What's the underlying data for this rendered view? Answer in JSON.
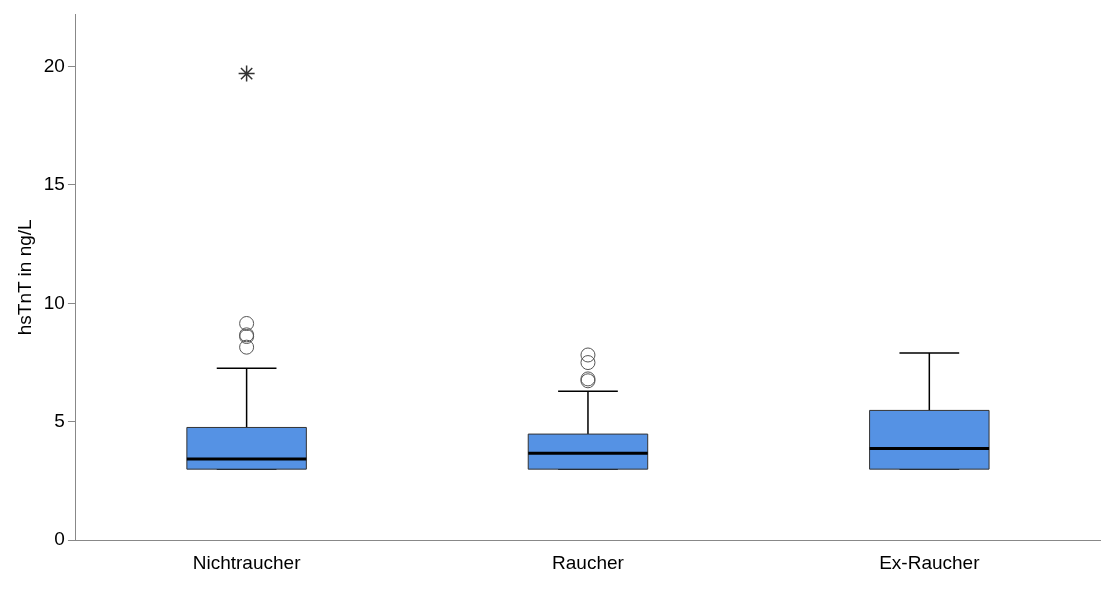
{
  "chart_data": {
    "type": "box",
    "ylabel": "hsTnT in ng/L",
    "categories": [
      "Nichtraucher",
      "Raucher",
      "Ex-Raucher"
    ],
    "ylim": [
      0,
      22.2
    ],
    "yticks": [
      0,
      5,
      10,
      15,
      20
    ],
    "grid": false,
    "series": [
      {
        "color": "#5592e4",
        "boxes": [
          {
            "low": 3,
            "q1": 3,
            "median": 3.43,
            "q3": 4.76,
            "high": 7.26,
            "outliers": [
              9.15,
              8.67,
              8.6,
              8.15
            ]
          },
          {
            "low": 3,
            "q1": 3,
            "median": 3.67,
            "q3": 4.48,
            "high": 6.29,
            "outliers": [
              7.82,
              7.5,
              6.81,
              6.73
            ]
          },
          {
            "low": 3,
            "q1": 3,
            "median": 3.87,
            "q3": 5.48,
            "high": 7.9
          }
        ]
      },
      {
        "type": "scatter",
        "x": [
          "Nichtraucher"
        ],
        "values": [
          19.7
        ],
        "marker": "cross",
        "color": "#333333"
      }
    ]
  }
}
